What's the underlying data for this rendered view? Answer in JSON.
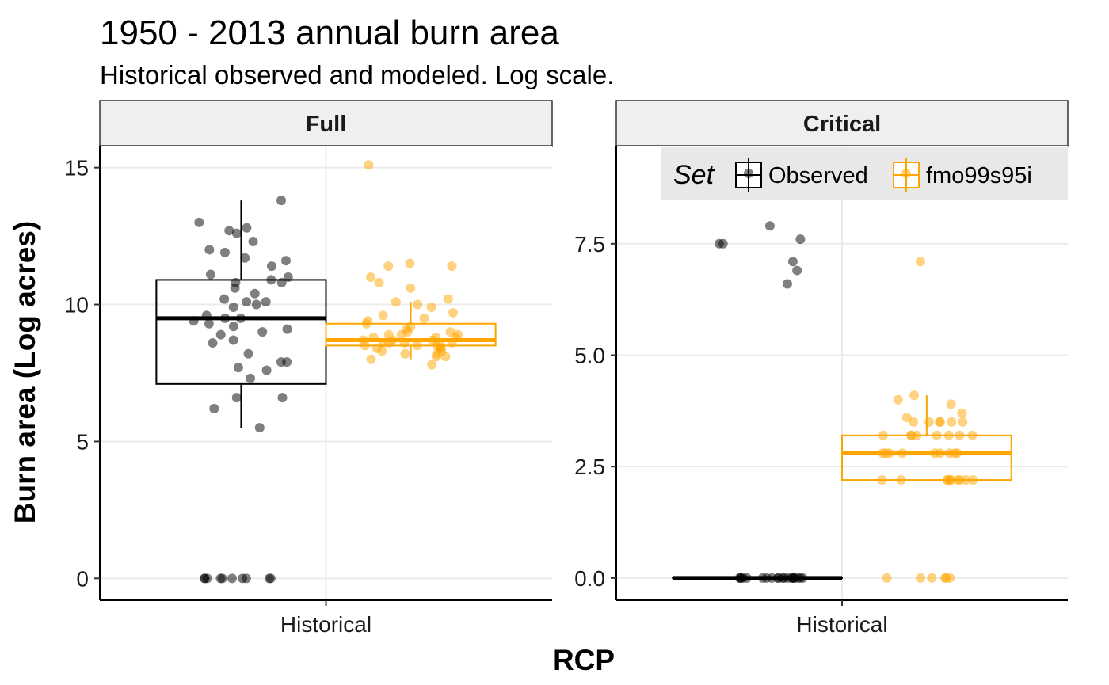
{
  "title": "1950 - 2013 annual burn area",
  "subtitle": "Historical observed and modeled. Log scale.",
  "xlabel": "RCP",
  "ylabel": "Burn area (Log acres)",
  "legend": {
    "title": "Set",
    "placement": "top-right of Critical panel",
    "items": [
      {
        "label": "Observed",
        "color": "#000000"
      },
      {
        "label": "fmo99s95i",
        "color": "#FFA500"
      }
    ]
  },
  "chart_data": [
    {
      "type": "box",
      "panel": "Full",
      "categories": [
        "Historical"
      ],
      "ylim": [
        -0.8,
        15.8
      ],
      "yticks": [
        0,
        5,
        10,
        15
      ],
      "grid": true,
      "series": [
        {
          "name": "Observed",
          "color": "#000000",
          "box": {
            "min": 5.5,
            "q1": 7.1,
            "median": 9.5,
            "q3": 10.9,
            "max": 13.8
          },
          "points": [
            13.8,
            13.0,
            12.8,
            12.7,
            12.6,
            12.3,
            12.0,
            11.9,
            11.7,
            11.6,
            11.4,
            11.1,
            11.0,
            10.9,
            10.8,
            10.8,
            10.6,
            10.4,
            10.2,
            10.1,
            10.1,
            10.0,
            9.9,
            9.6,
            9.5,
            9.5,
            9.4,
            9.3,
            9.2,
            9.1,
            9.0,
            8.9,
            8.7,
            8.6,
            8.2,
            7.9,
            7.9,
            7.7,
            7.6,
            7.3,
            6.6,
            6.6,
            6.2,
            5.5,
            0,
            0,
            0,
            0,
            0,
            0,
            0,
            0,
            0,
            0
          ]
        },
        {
          "name": "fmo99s95i",
          "color": "#FFA500",
          "box": {
            "min": 8.0,
            "q1": 8.5,
            "median": 8.7,
            "q3": 9.3,
            "max": 10.1
          },
          "points": [
            15.1,
            11.5,
            11.4,
            11.4,
            11.0,
            10.8,
            10.6,
            10.2,
            10.1,
            10.0,
            9.9,
            9.7,
            9.6,
            9.5,
            9.4,
            9.3,
            9.2,
            9.1,
            9.0,
            9.0,
            8.9,
            8.9,
            8.9,
            8.8,
            8.8,
            8.8,
            8.7,
            8.7,
            8.7,
            8.6,
            8.6,
            8.6,
            8.6,
            8.5,
            8.5,
            8.5,
            8.5,
            8.4,
            8.4,
            8.4,
            8.3,
            8.3,
            8.2,
            8.2,
            8.1,
            8.1,
            8.0,
            7.8
          ]
        }
      ]
    },
    {
      "type": "box",
      "panel": "Critical",
      "categories": [
        "Historical"
      ],
      "ylim": [
        -0.5,
        9.7
      ],
      "yticks": [
        0.0,
        2.5,
        5.0,
        7.5
      ],
      "grid": true,
      "series": [
        {
          "name": "Observed",
          "color": "#000000",
          "box": {
            "min": 0,
            "q1": 0,
            "median": 0,
            "q3": 0,
            "max": 0
          },
          "points": [
            8.8,
            8.8,
            7.9,
            7.6,
            7.5,
            7.5,
            7.1,
            6.9,
            6.6,
            0,
            0,
            0,
            0,
            0,
            0,
            0,
            0,
            0,
            0,
            0,
            0,
            0,
            0,
            0,
            0,
            0,
            0,
            0,
            0
          ]
        },
        {
          "name": "fmo99s95i",
          "color": "#FFA500",
          "box": {
            "min": 2.2,
            "q1": 2.2,
            "median": 2.8,
            "q3": 3.2,
            "max": 4.1
          },
          "points": [
            7.1,
            4.1,
            4.0,
            3.9,
            3.7,
            3.6,
            3.5,
            3.5,
            3.5,
            3.5,
            3.5,
            3.5,
            3.2,
            3.2,
            3.2,
            3.2,
            3.2,
            3.2,
            3.2,
            3.2,
            2.8,
            2.8,
            2.8,
            2.8,
            2.8,
            2.8,
            2.8,
            2.8,
            2.8,
            2.2,
            2.2,
            2.2,
            2.2,
            2.2,
            2.2,
            2.2,
            2.2,
            2.2,
            2.2,
            0,
            0,
            0,
            0,
            0,
            0
          ]
        }
      ]
    }
  ]
}
